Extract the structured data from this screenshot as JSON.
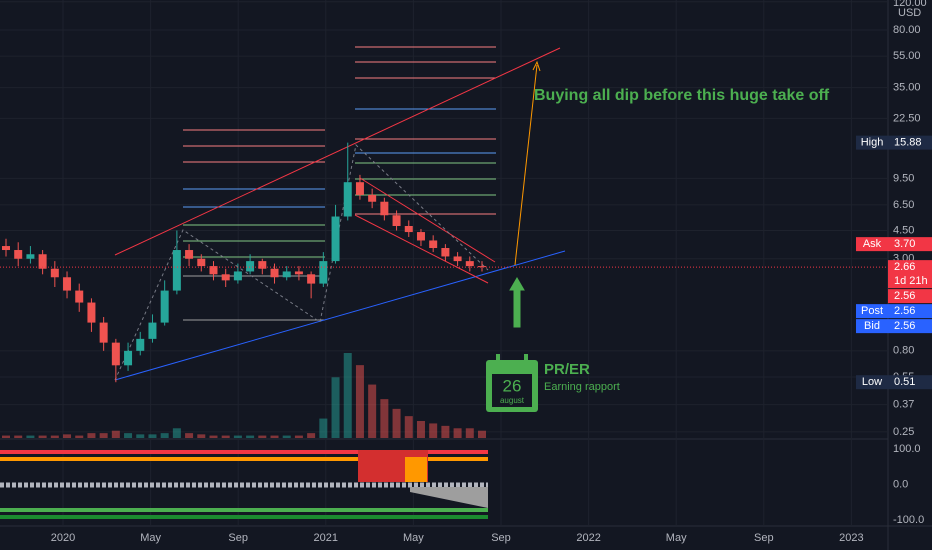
{
  "chart_data": {
    "type": "candlestick",
    "scale": "log",
    "currency": "USD",
    "open": [
      3.6,
      3.4,
      3.0,
      3.2,
      2.6,
      2.3,
      1.9,
      1.6,
      1.2,
      0.9,
      0.65,
      0.8,
      0.95,
      1.2,
      1.9,
      3.4,
      3.0,
      2.7,
      2.4,
      2.2,
      2.5,
      2.9,
      2.6,
      2.3,
      2.5,
      2.4,
      2.1,
      2.9,
      5.5,
      9.0,
      7.5,
      6.8,
      5.6,
      4.8,
      4.4,
      3.9,
      3.5,
      3.1,
      2.9,
      2.7
    ],
    "high": [
      4.0,
      3.8,
      3.6,
      3.4,
      2.9,
      2.5,
      2.1,
      1.7,
      1.3,
      0.95,
      0.9,
      1.05,
      1.35,
      2.2,
      4.5,
      3.7,
      3.2,
      2.9,
      2.6,
      2.8,
      3.2,
      3.0,
      2.8,
      2.7,
      2.7,
      2.5,
      3.3,
      6.5,
      15.88,
      10.0,
      8.2,
      7.2,
      6.0,
      5.2,
      4.6,
      4.2,
      3.7,
      3.3,
      3.1,
      2.9
    ],
    "low": [
      3.1,
      2.7,
      2.8,
      2.4,
      2.0,
      1.7,
      1.4,
      1.05,
      0.8,
      0.51,
      0.6,
      0.75,
      0.9,
      1.15,
      1.8,
      2.7,
      2.5,
      2.2,
      2.0,
      2.1,
      2.4,
      2.4,
      2.1,
      2.2,
      2.2,
      1.7,
      2.0,
      2.8,
      5.2,
      7.0,
      6.2,
      5.2,
      4.5,
      4.1,
      3.6,
      3.3,
      2.9,
      2.7,
      2.5,
      2.5
    ],
    "close": [
      3.4,
      3.0,
      3.2,
      2.6,
      2.3,
      1.9,
      1.6,
      1.2,
      0.9,
      0.65,
      0.8,
      0.95,
      1.2,
      1.9,
      3.4,
      3.0,
      2.7,
      2.4,
      2.2,
      2.5,
      2.9,
      2.6,
      2.3,
      2.5,
      2.4,
      2.1,
      2.9,
      5.5,
      9.0,
      7.5,
      6.8,
      5.6,
      4.8,
      4.4,
      3.9,
      3.5,
      3.1,
      2.9,
      2.7,
      2.66
    ],
    "volume": [
      1,
      1,
      1,
      1,
      1,
      1.5,
      1,
      2,
      2,
      3,
      2,
      1.5,
      1.5,
      2,
      4,
      2,
      1.5,
      1,
      1,
      1,
      1,
      1,
      1,
      1,
      1,
      2,
      8,
      25,
      35,
      30,
      22,
      16,
      12,
      9,
      7,
      6,
      5,
      4,
      4,
      3
    ],
    "up_color": "#26a69a",
    "down_color": "#ef5350",
    "ylim": [
      0.229,
      123
    ],
    "yticks": [
      {
        "value": 120,
        "label": "120.00"
      },
      {
        "value": 80,
        "label": "80.00"
      },
      {
        "value": 55,
        "label": "55.00"
      },
      {
        "value": 35,
        "label": "35.00"
      },
      {
        "value": 22.5,
        "label": "22.50"
      },
      {
        "value": 9.5,
        "label": "9.50"
      },
      {
        "value": 6.5,
        "label": "6.50"
      },
      {
        "value": 4.5,
        "label": "4.50"
      },
      {
        "value": 3,
        "label": "3.00"
      },
      {
        "value": 0.8,
        "label": "0.80"
      },
      0.55,
      0.37,
      0.25
    ],
    "xticks": [
      "2020",
      "May",
      "Sep",
      "2021",
      "May",
      "Sep",
      "2022",
      "May",
      "Sep",
      "2023"
    ],
    "badges": [
      {
        "name": "High",
        "value": 15.88,
        "color": "#1e2a44"
      },
      {
        "name": "Ask",
        "value": 3.7,
        "value_label": "3.70",
        "color": "#f23645"
      },
      {
        "value": 2.66,
        "extra": "1d 21h",
        "color": "#f23645"
      },
      {
        "value": 2.56,
        "color": "#f23645"
      },
      {
        "name": "Post",
        "value": 2.56,
        "color": "#2962ff"
      },
      {
        "name": "Bid",
        "value": 2.56,
        "color": "#2962ff"
      },
      {
        "name": "Low",
        "value": 0.51,
        "color": "#1e2a44"
      }
    ],
    "indicator": {
      "ylim": [
        -114,
        125
      ],
      "yticks": [
        {
          "value": 100,
          "label": "100.0"
        },
        {
          "value": 0,
          "label": "0.0"
        },
        {
          "value": -100,
          "label": "-100.0"
        }
      ]
    },
    "annotations": {
      "headline": "Buying all dip before this huge take off",
      "event_title": "PR/ER",
      "event_subtitle": "Earning rapport",
      "day": 26,
      "month": "august"
    }
  }
}
